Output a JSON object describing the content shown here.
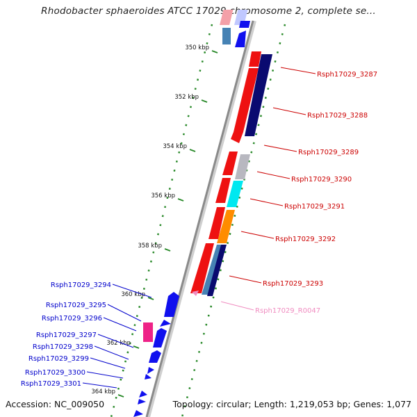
{
  "title": "Rhodobacter sphaeroides ATCC 17029 chromosome 2, complete se...",
  "footer": {
    "accession": "Accession: NC_009050",
    "summary": "Topology: circular; Length: 1,219,053 bp; Genes: 1,077"
  },
  "colors": {
    "backbone": "#8a8a8a",
    "tick_dots": "#2a8a2a",
    "right_label": "#cc0000",
    "left_label": "#0000cc",
    "rna_label": "#f08cc0"
  },
  "ticks": [
    {
      "label": "350 kbp"
    },
    {
      "label": "352 kbp"
    },
    {
      "label": "354 kbp"
    },
    {
      "label": "356 kbp"
    },
    {
      "label": "358 kbp"
    },
    {
      "label": "360 kbp"
    },
    {
      "label": "362 kbp"
    },
    {
      "label": "364 kbp"
    }
  ],
  "right_genes": [
    {
      "label": "Rsph17029_3287",
      "color": "#cc0000"
    },
    {
      "label": "Rsph17029_3288",
      "color": "#cc0000"
    },
    {
      "label": "Rsph17029_3289",
      "color": "#cc0000"
    },
    {
      "label": "Rsph17029_3290",
      "color": "#cc0000"
    },
    {
      "label": "Rsph17029_3291",
      "color": "#cc0000"
    },
    {
      "label": "Rsph17029_3292",
      "color": "#cc0000"
    },
    {
      "label": "Rsph17029_3293",
      "color": "#cc0000"
    },
    {
      "label": "Rsph17029_R0047",
      "color": "#f08cc0"
    }
  ],
  "left_genes": [
    {
      "label": "Rsph17029_3294"
    },
    {
      "label": "Rsph17029_3295"
    },
    {
      "label": "Rsph17029_3296"
    },
    {
      "label": "Rsph17029_3297"
    },
    {
      "label": "Rsph17029_3298"
    },
    {
      "label": "Rsph17029_3299"
    },
    {
      "label": "Rsph17029_3300"
    },
    {
      "label": "Rsph17029_3301"
    }
  ]
}
